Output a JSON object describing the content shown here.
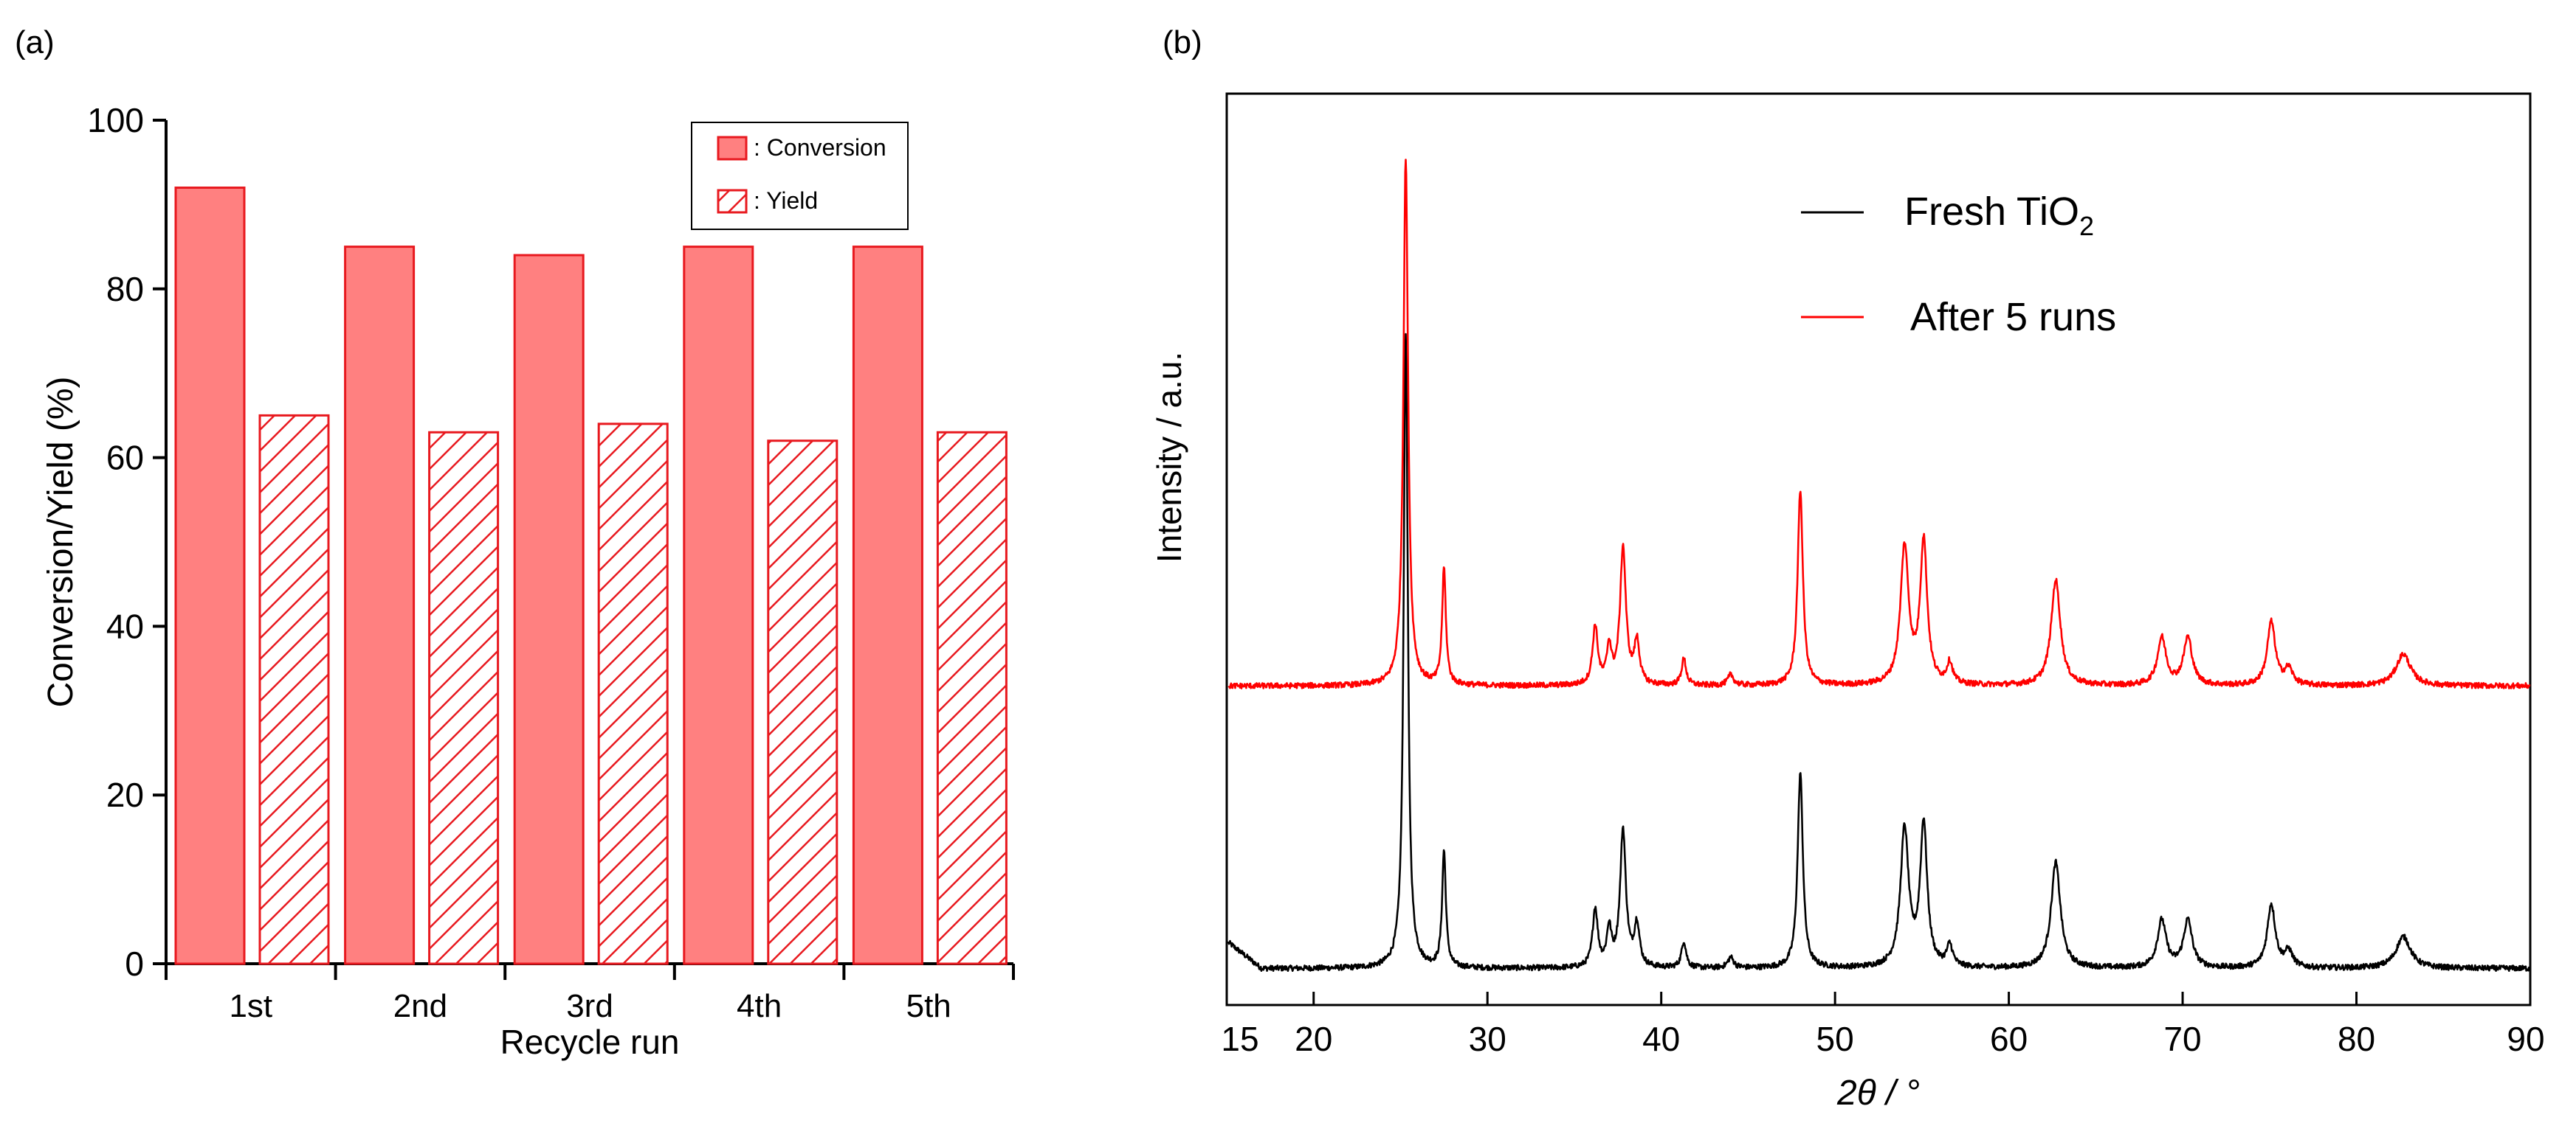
{
  "panel_a": {
    "label": "(a)"
  },
  "panel_b": {
    "label": "(b)"
  },
  "chart_data": [
    {
      "type": "bar",
      "panel": "(a)",
      "categories": [
        "1st",
        "2nd",
        "3rd",
        "4th",
        "5th"
      ],
      "series": [
        {
          "name": ": Conversion",
          "values": [
            92,
            85,
            84,
            85,
            85
          ],
          "color": "#ff8080",
          "edge": "#e8191f",
          "pattern": "solid"
        },
        {
          "name": ": Yield",
          "values": [
            65,
            63,
            64,
            62,
            63
          ],
          "color": "#ffffff",
          "edge": "#e8191f",
          "pattern": "hatch"
        }
      ],
      "xlabel": "Recycle run",
      "ylabel": "Conversion/Yield (%)",
      "ylim": [
        0,
        100
      ],
      "yticks": [
        "0",
        "20",
        "40",
        "60",
        "80",
        "100"
      ],
      "legend": "top-right",
      "grid": false
    },
    {
      "type": "line",
      "panel": "(b)",
      "xlabel": "2θ / °",
      "ylabel": "Intensity / a.u.",
      "xlim": [
        15,
        90
      ],
      "xticks": [
        "15",
        "20",
        "30",
        "40",
        "50",
        "60",
        "70",
        "80",
        "90"
      ],
      "yticks_shown": false,
      "legend": "top-right",
      "grid": false,
      "peaks": [
        {
          "pos": 25.3,
          "height": 1.0,
          "width": 0.16
        },
        {
          "pos": 27.5,
          "height": 0.22,
          "width": 0.13
        },
        {
          "pos": 36.2,
          "height": 0.11,
          "width": 0.18
        },
        {
          "pos": 37.0,
          "height": 0.07,
          "width": 0.16
        },
        {
          "pos": 37.8,
          "height": 0.26,
          "width": 0.2
        },
        {
          "pos": 38.6,
          "height": 0.08,
          "width": 0.18
        },
        {
          "pos": 41.3,
          "height": 0.05,
          "width": 0.16
        },
        {
          "pos": 44.0,
          "height": 0.02,
          "width": 0.2
        },
        {
          "pos": 48.0,
          "height": 0.37,
          "width": 0.18
        },
        {
          "pos": 54.0,
          "height": 0.26,
          "width": 0.28
        },
        {
          "pos": 55.1,
          "height": 0.27,
          "width": 0.24
        },
        {
          "pos": 56.6,
          "height": 0.04,
          "width": 0.2
        },
        {
          "pos": 62.7,
          "height": 0.2,
          "width": 0.32
        },
        {
          "pos": 68.8,
          "height": 0.09,
          "width": 0.3
        },
        {
          "pos": 70.3,
          "height": 0.09,
          "width": 0.3
        },
        {
          "pos": 75.1,
          "height": 0.12,
          "width": 0.28
        },
        {
          "pos": 76.1,
          "height": 0.03,
          "width": 0.28
        },
        {
          "pos": 82.7,
          "height": 0.06,
          "width": 0.5
        }
      ],
      "series": [
        {
          "name": "Fresh TiO",
          "name_sub": "2",
          "color": "#000000",
          "baseline": 0.04,
          "scale": 0.58,
          "fresh_extra_peak": 0.2,
          "rise_at_low_angle": 0.03
        },
        {
          "name": "After 5 runs",
          "color": "#ff0000",
          "baseline": 0.35,
          "scale": 0.58,
          "fresh_extra_peak": 0.0,
          "rise_at_low_angle": 0.0
        }
      ]
    }
  ]
}
